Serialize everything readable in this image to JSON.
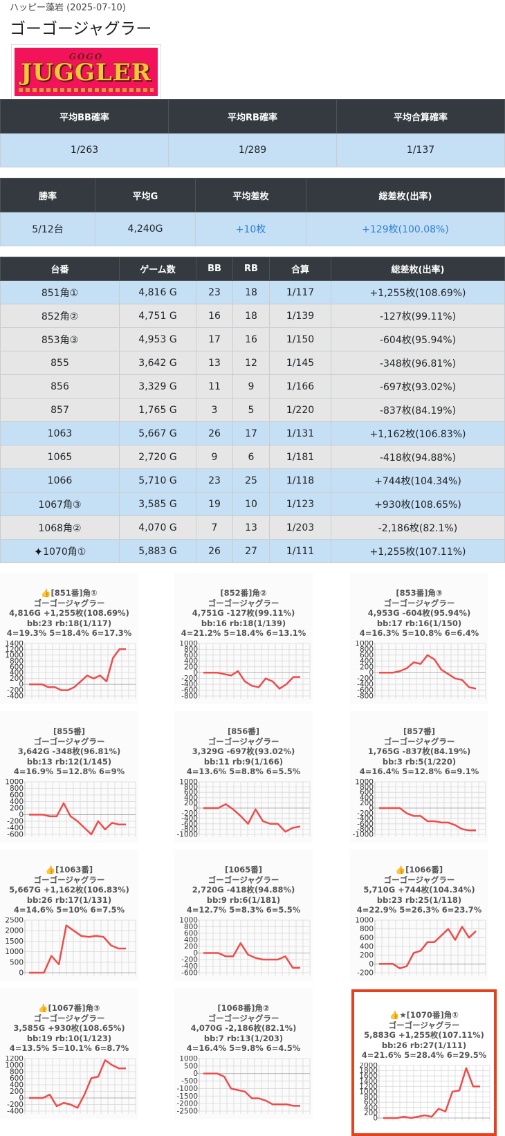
{
  "header": {
    "subtitle": "ハッピー藻岩 (2025-07-10)",
    "title": "ゴーゴージャグラー",
    "logo_text_top": "GOGO",
    "logo_text_main": "JUGGLER"
  },
  "summary1": {
    "headers": [
      "平均BB確率",
      "平均RB確率",
      "平均合算確率"
    ],
    "values": [
      "1/263",
      "1/289",
      "1/137"
    ]
  },
  "summary2": {
    "headers": [
      "勝率",
      "平均G",
      "平均差枚",
      "総差枚(出率)"
    ],
    "values": [
      "5/12台",
      "4,240G",
      "+10枚",
      "+129枚(100.08%)"
    ]
  },
  "machines": {
    "headers": [
      "台番",
      "ゲーム数",
      "BB",
      "RB",
      "合算",
      "総差枚(出率)"
    ],
    "rows": [
      {
        "no": "851角①",
        "games": "4,816 G",
        "bb": "23",
        "rb": "18",
        "total": "1/117",
        "diff": "+1,255枚(108.69%)",
        "win": true
      },
      {
        "no": "852角②",
        "games": "4,751 G",
        "bb": "16",
        "rb": "18",
        "total": "1/139",
        "diff": "-127枚(99.11%)",
        "win": false
      },
      {
        "no": "853角③",
        "games": "4,953 G",
        "bb": "17",
        "rb": "16",
        "total": "1/150",
        "diff": "-604枚(95.94%)",
        "win": false
      },
      {
        "no": "855",
        "games": "3,642 G",
        "bb": "13",
        "rb": "12",
        "total": "1/145",
        "diff": "-348枚(96.81%)",
        "win": false
      },
      {
        "no": "856",
        "games": "3,329 G",
        "bb": "11",
        "rb": "9",
        "total": "1/166",
        "diff": "-697枚(93.02%)",
        "win": false
      },
      {
        "no": "857",
        "games": "1,765 G",
        "bb": "3",
        "rb": "5",
        "total": "1/220",
        "diff": "-837枚(84.19%)",
        "win": false
      },
      {
        "no": "1063",
        "games": "5,667 G",
        "bb": "26",
        "rb": "17",
        "total": "1/131",
        "diff": "+1,162枚(106.83%)",
        "win": true
      },
      {
        "no": "1065",
        "games": "2,720 G",
        "bb": "9",
        "rb": "6",
        "total": "1/181",
        "diff": "-418枚(94.88%)",
        "win": false
      },
      {
        "no": "1066",
        "games": "5,710 G",
        "bb": "23",
        "rb": "25",
        "total": "1/118",
        "diff": "+744枚(104.34%)",
        "win": true
      },
      {
        "no": "1067角③",
        "games": "3,585 G",
        "bb": "19",
        "rb": "10",
        "total": "1/123",
        "diff": "+930枚(108.65%)",
        "win": true
      },
      {
        "no": "1068角②",
        "games": "4,070 G",
        "bb": "7",
        "rb": "13",
        "total": "1/203",
        "diff": "-2,186枚(82.1%)",
        "win": false
      },
      {
        "no": "1070角①",
        "games": "5,883 G",
        "bb": "26",
        "rb": "27",
        "total": "1/111",
        "diff": "+1,255枚(107.11%)",
        "win": true,
        "sparkle": true
      }
    ]
  },
  "chart_data": [
    {
      "type": "line",
      "title": "👍[851番]角①",
      "lines": [
        "ゴーゴージャグラー",
        "4,816G +1,255枚(108.69%)",
        "bb:23 rb:18(1/117)",
        "4=19.3% 5=18.4% 6=17.3%"
      ],
      "yticks": [
        1400,
        1200,
        1000,
        800,
        600,
        400,
        200,
        0,
        -200,
        -400
      ],
      "ylim": [
        -400,
        1400
      ],
      "values": [
        0,
        0,
        0,
        -100,
        -100,
        -200,
        -200,
        -100,
        100,
        300,
        200,
        300,
        100,
        900,
        1200,
        1200
      ],
      "color": "#f04a4a"
    },
    {
      "type": "line",
      "title": "[852番]角②",
      "lines": [
        "ゴーゴージャグラー",
        "4,751G -127枚(99.11%)",
        "bb:16 rb:18(1/139)",
        "4=21.2% 5=18.4% 6=13.1%"
      ],
      "yticks": [
        1000,
        800,
        600,
        400,
        200,
        0,
        -200,
        -400,
        -600,
        -800
      ],
      "ylim": [
        -800,
        1000
      ],
      "values": [
        0,
        0,
        0,
        -50,
        -100,
        50,
        -300,
        -450,
        -500,
        -200,
        -300,
        -550,
        -400,
        -150,
        -150
      ],
      "color": "#f04a4a"
    },
    {
      "type": "line",
      "title": "[853番]角③",
      "lines": [
        "ゴーゴージャグラー",
        "4,953G -604枚(95.94%)",
        "bb:17 rb:16(1/150)",
        "4=16.3% 5=10.8% 6=6.4%"
      ],
      "yticks": [
        1000,
        800,
        600,
        400,
        200,
        0,
        -200,
        -400,
        -600,
        -800
      ],
      "ylim": [
        -800,
        1000
      ],
      "values": [
        0,
        0,
        0,
        50,
        150,
        350,
        300,
        600,
        450,
        100,
        -50,
        -200,
        -250,
        -500,
        -550
      ],
      "color": "#f04a4a"
    },
    {
      "type": "line",
      "title": "[855番]",
      "lines": [
        "ゴーゴージャグラー",
        "3,642G -348枚(96.81%)",
        "bb:13 rb:12(1/145)",
        "4=16.9% 5=12.8% 6=9%"
      ],
      "yticks": [
        1000,
        800,
        600,
        400,
        200,
        0,
        -200,
        -400,
        -600
      ],
      "ylim": [
        -600,
        1000
      ],
      "values": [
        0,
        0,
        0,
        -50,
        -50,
        350,
        -50,
        -200,
        -400,
        -600,
        -200,
        -450,
        -250,
        -300,
        -300
      ],
      "color": "#f04a4a"
    },
    {
      "type": "line",
      "title": "[856番]",
      "lines": [
        "ゴーゴージャグラー",
        "3,329G -697枚(93.02%)",
        "bb:11 rb:9(1/166)",
        "4=13.6% 5=8.8% 6=5.5%"
      ],
      "yticks": [
        1000,
        800,
        600,
        400,
        200,
        0,
        -200,
        -400,
        -600,
        -800,
        -1000
      ],
      "ylim": [
        -1000,
        1000
      ],
      "values": [
        0,
        0,
        0,
        150,
        -50,
        -300,
        -600,
        -50,
        -500,
        -600,
        -600,
        -900,
        -750,
        -700
      ],
      "color": "#f04a4a"
    },
    {
      "type": "line",
      "title": "[857番]",
      "lines": [
        "ゴーゴージャグラー",
        "1,765G -837枚(84.19%)",
        "bb:3 rb:5(1/220)",
        "4=16.4% 5=12.8% 6=9.1%"
      ],
      "yticks": [
        1000,
        800,
        600,
        400,
        200,
        0,
        -200,
        -400,
        -600,
        -800,
        -1000
      ],
      "ylim": [
        -1000,
        1000
      ],
      "values": [
        0,
        0,
        0,
        0,
        -200,
        -300,
        -300,
        -500,
        -500,
        -550,
        -550,
        -650,
        -800,
        -850,
        -850
      ],
      "color": "#f04a4a"
    },
    {
      "type": "line",
      "title": "👍[1063番]",
      "lines": [
        "ゴーゴージャグラー",
        "5,667G +1,162枚(106.83%)",
        "bb:26 rb:17(1/131)",
        "4=14.6% 5=10% 6=7.5%"
      ],
      "yticks": [
        2500,
        2000,
        1500,
        1000,
        500,
        0
      ],
      "ylim": [
        0,
        2500
      ],
      "values": [
        0,
        0,
        0,
        800,
        400,
        2250,
        2000,
        1750,
        1700,
        1750,
        1700,
        1300,
        1150,
        1150
      ],
      "color": "#f04a4a"
    },
    {
      "type": "line",
      "title": "[1065番]",
      "lines": [
        "ゴーゴージャグラー",
        "2,720G -418枚(94.88%)",
        "bb:9 rb:6(1/181)",
        "4=12.7% 5=8.3% 6=5.5%"
      ],
      "yticks": [
        1000,
        800,
        600,
        400,
        200,
        0,
        -200,
        -400,
        -600
      ],
      "ylim": [
        -600,
        1000
      ],
      "values": [
        0,
        0,
        0,
        -100,
        -100,
        300,
        -50,
        -150,
        -200,
        -200,
        -200,
        -100,
        -450,
        -450
      ],
      "color": "#f04a4a"
    },
    {
      "type": "line",
      "title": "👍[1066番]",
      "lines": [
        "ゴーゴージャグラー",
        "5,710G +744枚(104.34%)",
        "bb:23 rb:25(1/118)",
        "4=22.9% 5=26.3% 6=23.7%"
      ],
      "yticks": [
        1000,
        800,
        600,
        400,
        200,
        0,
        -200
      ],
      "ylim": [
        -200,
        1000
      ],
      "values": [
        0,
        0,
        0,
        -100,
        -50,
        250,
        300,
        500,
        500,
        650,
        800,
        550,
        850,
        600,
        750
      ],
      "color": "#f04a4a"
    },
    {
      "type": "line",
      "title": "👍[1067番]角③",
      "lines": [
        "ゴーゴージャグラー",
        "3,585G +930枚(108.65%)",
        "bb:19 rb:10(1/123)",
        "4=13.5% 5=10.1% 6=8.7%"
      ],
      "yticks": [
        1200,
        1000,
        800,
        600,
        400,
        200,
        0,
        -200,
        -400
      ],
      "ylim": [
        -400,
        1200
      ],
      "values": [
        0,
        0,
        0,
        100,
        -250,
        -150,
        -200,
        -300,
        100,
        600,
        650,
        1150,
        1000,
        900,
        900
      ],
      "color": "#f04a4a"
    },
    {
      "type": "line",
      "title": "[1068番]角②",
      "lines": [
        "ゴーゴージャグラー",
        "4,070G -2,186枚(82.1%)",
        "bb:7 rb:13(1/203)",
        "4=16.4% 5=9.8% 6=4.5%"
      ],
      "yticks": [
        1000,
        500,
        0,
        -500,
        -1000,
        -1500,
        -2000,
        -2500
      ],
      "ylim": [
        -2500,
        1000
      ],
      "values": [
        0,
        0,
        0,
        -200,
        -1000,
        -1100,
        -1200,
        -1650,
        -1650,
        -1800,
        -2050,
        -2050,
        -2050,
        -2150,
        -2150
      ],
      "color": "#f04a4a"
    },
    {
      "type": "line",
      "title": "👍★[1070番]角①",
      "lines": [
        "ゴーゴージャグラー",
        "5,883G +1,255枚(107.11%)",
        "bb:26 rb:27(1/111)",
        "4=21.6% 5=28.4% 6=29.5%"
      ],
      "yticks": [
        2000,
        1800,
        1600,
        1400,
        1200,
        1000,
        800,
        600,
        400,
        200,
        0
      ],
      "ylim": [
        0,
        2000
      ],
      "values": [
        0,
        0,
        0,
        50,
        0,
        50,
        100,
        50,
        350,
        250,
        1000,
        1050,
        1900,
        1200,
        1200
      ],
      "color": "#f04a4a",
      "highlight": true
    }
  ]
}
